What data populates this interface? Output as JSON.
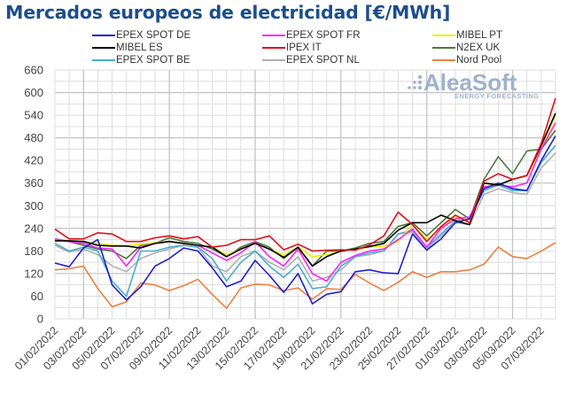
{
  "chart_data": {
    "type": "line",
    "title": "Mercados europeos de electricidad [€/MWh]",
    "xlabel": "",
    "ylabel": "",
    "ylim": [
      0,
      660
    ],
    "yticks": [
      0,
      60,
      120,
      180,
      240,
      300,
      360,
      420,
      480,
      540,
      600,
      660
    ],
    "grid": true,
    "legend_position": "top",
    "watermark": {
      "main": "AleaSoft",
      "sub": "ENERGY FORECASTING"
    },
    "x": [
      "01/02/2022",
      "02/02/2022",
      "03/02/2022",
      "04/02/2022",
      "05/02/2022",
      "06/02/2022",
      "07/02/2022",
      "08/02/2022",
      "09/02/2022",
      "10/02/2022",
      "11/02/2022",
      "12/02/2022",
      "13/02/2022",
      "14/02/2022",
      "15/02/2022",
      "16/02/2022",
      "17/02/2022",
      "18/02/2022",
      "19/02/2022",
      "20/02/2022",
      "21/02/2022",
      "22/02/2022",
      "23/02/2022",
      "24/02/2022",
      "25/02/2022",
      "26/02/2022",
      "27/02/2022",
      "28/02/2022",
      "01/03/2022",
      "02/03/2022",
      "03/03/2022",
      "04/03/2022",
      "05/03/2022",
      "06/03/2022",
      "07/03/2022",
      "08/03/2022"
    ],
    "xtick_labels": [
      "01/02/2022",
      "03/02/2022",
      "05/02/2022",
      "07/02/2022",
      "09/02/2022",
      "11/02/2022",
      "13/02/2022",
      "15/02/2022",
      "17/02/2022",
      "19/02/2022",
      "21/02/2022",
      "23/02/2022",
      "25/02/2022",
      "27/02/2022",
      "01/03/2022",
      "03/03/2022",
      "05/03/2022",
      "07/03/2022"
    ],
    "series": [
      {
        "name": "EPEX SPOT DE",
        "color": "#1f1fd0",
        "values": [
          148,
          138,
          188,
          210,
          90,
          50,
          85,
          140,
          160,
          188,
          180,
          135,
          85,
          100,
          155,
          115,
          70,
          120,
          40,
          65,
          72,
          125,
          130,
          122,
          120,
          225,
          182,
          212,
          255,
          265,
          345,
          360,
          345,
          340,
          420,
          485
        ]
      },
      {
        "name": "EPEX SPOT FR",
        "color": "#ff22ff",
        "values": [
          212,
          205,
          200,
          188,
          185,
          140,
          190,
          200,
          205,
          200,
          195,
          175,
          155,
          175,
          205,
          165,
          140,
          185,
          120,
          100,
          150,
          168,
          180,
          185,
          210,
          238,
          190,
          240,
          265,
          270,
          350,
          355,
          350,
          360,
          450,
          520
        ]
      },
      {
        "name": "MIBEL PT",
        "color": "#eeee00",
        "values": [
          208,
          207,
          205,
          200,
          195,
          193,
          198,
          202,
          205,
          200,
          195,
          190,
          170,
          185,
          200,
          185,
          170,
          190,
          165,
          170,
          180,
          185,
          190,
          193,
          205,
          250,
          210,
          240,
          270,
          255,
          360,
          355,
          370,
          380,
          450,
          540
        ]
      },
      {
        "name": "MIBEL ES",
        "color": "#000000",
        "values": [
          207,
          207,
          205,
          195,
          193,
          193,
          188,
          200,
          205,
          200,
          195,
          190,
          165,
          185,
          200,
          185,
          163,
          190,
          140,
          165,
          180,
          185,
          192,
          200,
          235,
          255,
          255,
          275,
          260,
          250,
          360,
          355,
          370,
          380,
          460,
          545
        ]
      },
      {
        "name": "IPEX IT",
        "color": "#e0101c",
        "values": [
          238,
          212,
          212,
          228,
          225,
          205,
          205,
          215,
          220,
          212,
          218,
          190,
          195,
          210,
          210,
          220,
          183,
          198,
          180,
          182,
          183,
          182,
          196,
          220,
          283,
          250,
          205,
          245,
          275,
          255,
          365,
          385,
          370,
          380,
          465,
          585
        ]
      },
      {
        "name": "N2EX UK",
        "color": "#4a7a3a",
        "values": [
          210,
          205,
          195,
          185,
          180,
          160,
          195,
          200,
          215,
          205,
          200,
          185,
          165,
          190,
          205,
          190,
          160,
          190,
          140,
          180,
          180,
          188,
          200,
          205,
          245,
          255,
          220,
          255,
          290,
          265,
          370,
          430,
          385,
          445,
          450,
          500
        ]
      },
      {
        "name": "EPEX SPOT BE",
        "color": "#4aaed0",
        "values": [
          200,
          180,
          190,
          180,
          100,
          60,
          180,
          180,
          190,
          195,
          190,
          160,
          100,
          150,
          180,
          140,
          110,
          145,
          80,
          85,
          140,
          165,
          175,
          180,
          225,
          235,
          190,
          225,
          260,
          265,
          340,
          355,
          340,
          340,
          415,
          460
        ]
      },
      {
        "name": "EPEX SPOT NL",
        "color": "#b0b0b0",
        "values": [
          195,
          177,
          185,
          170,
          140,
          125,
          160,
          175,
          185,
          195,
          190,
          140,
          125,
          165,
          180,
          150,
          130,
          165,
          100,
          110,
          130,
          165,
          170,
          180,
          225,
          230,
          185,
          220,
          255,
          250,
          330,
          345,
          335,
          330,
          400,
          440
        ]
      },
      {
        "name": "Nord Pool",
        "color": "#ee8040",
        "values": [
          130,
          133,
          140,
          80,
          32,
          45,
          95,
          90,
          75,
          88,
          105,
          65,
          28,
          82,
          92,
          90,
          75,
          82,
          52,
          80,
          78,
          118,
          95,
          75,
          97,
          125,
          110,
          125,
          125,
          130,
          145,
          190,
          165,
          160,
          180,
          202
        ]
      }
    ]
  }
}
